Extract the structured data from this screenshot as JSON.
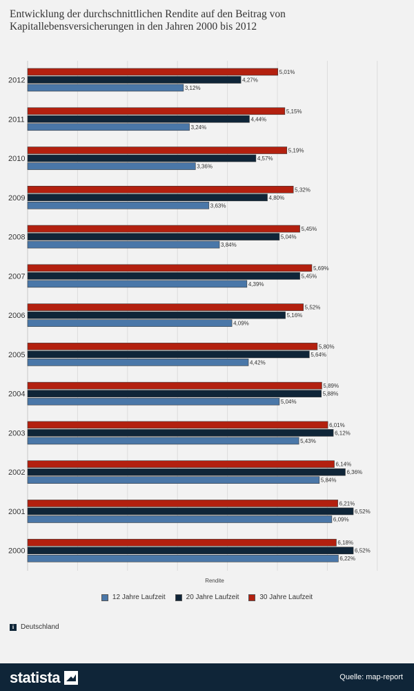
{
  "title": "Entwicklung der durchschnittlichen Rendite auf den Beitrag von Kapitallebensversicherungen in den Jahren 2000 bis 2012",
  "region": "Deutschland",
  "region_icon": "info-icon",
  "brand": "statista",
  "source": "Quelle: map-report",
  "colors": {
    "background": "#f2f2f2",
    "footer": "#0f2538",
    "series_12": "#4a77a8",
    "series_20": "#0f2538",
    "series_30": "#b3200f"
  },
  "chart_data": {
    "type": "bar",
    "orientation": "horizontal",
    "categories": [
      "2012",
      "2011",
      "2010",
      "2009",
      "2008",
      "2007",
      "2006",
      "2005",
      "2004",
      "2003",
      "2002",
      "2001",
      "2000"
    ],
    "series": [
      {
        "name": "30 Jahre Laufzeit",
        "color": "#b3200f",
        "values": [
          5.01,
          5.15,
          5.19,
          5.32,
          5.45,
          5.69,
          5.52,
          5.8,
          5.89,
          6.01,
          6.14,
          6.21,
          6.18
        ],
        "labels": [
          "5,01%",
          "5,15%",
          "5,19%",
          "5,32%",
          "5,45%",
          "5,69%",
          "5,52%",
          "5,80%",
          "5,89%",
          "6,01%",
          "6,14%",
          "6,21%",
          "6,18%"
        ]
      },
      {
        "name": "20 Jahre Laufzeit",
        "color": "#0f2538",
        "values": [
          4.27,
          4.44,
          4.57,
          4.8,
          5.04,
          5.45,
          5.16,
          5.64,
          5.88,
          6.12,
          6.36,
          6.52,
          6.52
        ],
        "labels": [
          "4,27%",
          "4,44%",
          "4,57%",
          "4,80%",
          "5,04%",
          "5,45%",
          "5,16%",
          "5,64%",
          "5,88%",
          "6,12%",
          "6,36%",
          "6,52%",
          "6,52%"
        ]
      },
      {
        "name": "12 Jahre Laufzeit",
        "color": "#4a77a8",
        "values": [
          3.12,
          3.24,
          3.36,
          3.63,
          3.84,
          4.39,
          4.09,
          4.42,
          5.04,
          5.43,
          5.84,
          6.09,
          6.22
        ],
        "labels": [
          "3,12%",
          "3,24%",
          "3,36%",
          "3,63%",
          "3,84%",
          "4,39%",
          "4,09%",
          "4,42%",
          "5,04%",
          "5,43%",
          "5,84%",
          "6,09%",
          "6,22%"
        ]
      }
    ],
    "legend": [
      {
        "name": "12 Jahre Laufzeit",
        "color": "#4a77a8"
      },
      {
        "name": "20 Jahre Laufzeit",
        "color": "#0f2538"
      },
      {
        "name": "30 Jahre Laufzeit",
        "color": "#b3200f"
      }
    ],
    "xlabel": "Rendite",
    "xlim": [
      0,
      7
    ],
    "grid": true,
    "legend_position": "bottom"
  }
}
